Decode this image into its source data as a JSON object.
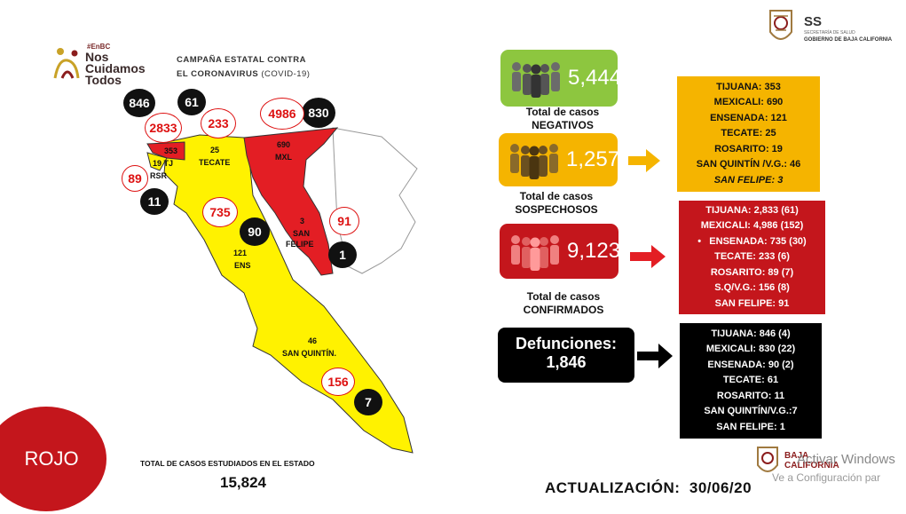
{
  "header": {
    "hashtag": "#EnBC",
    "logo_line1": "Nos",
    "logo_line2": "Cuidamos",
    "logo_line3": "Todos",
    "campaign_line1": "CAMPAÑA ESTATAL CONTRA",
    "campaign_line2a": "EL CORONAVIRUS",
    "campaign_line2b": "(COVID-19)",
    "ss_label": "SS",
    "ss_sub": "SECRETARÍA DE SALUD",
    "gov_label": "GOBIERNO DE BAJA CALIFORNIA"
  },
  "map": {
    "circles": {
      "tj_deaths": "846",
      "tecate_deaths": "61",
      "mxl_deaths": "830",
      "tj_confirmed": "2833",
      "tecate_confirmed": "233",
      "mxl_confirmed": "4986",
      "rsr_confirmed": "89",
      "rsr_deaths": "11",
      "ens_confirmed": "735",
      "ens_deaths": "90",
      "sf_confirmed": "91",
      "sf_deaths": "1",
      "sq_confirmed": "156",
      "sq_deaths": "7"
    },
    "labels": {
      "tj_suspect": "353",
      "tj_name": "19 TJ",
      "rsr_name": "RSR",
      "tecate_suspect": "25",
      "tecate_name": "TECATE",
      "mxl_suspect": "690",
      "mxl_name": "MXL",
      "sf_suspect": "3",
      "sf_name1": "SAN",
      "sf_name2": "FELIPE",
      "ens_suspect": "121",
      "ens_name": "ENS",
      "sq_suspect": "46",
      "sq_name": "SAN QUINTÍN."
    }
  },
  "status": {
    "label": "ROJO"
  },
  "totals": {
    "caption": "TOTAL DE CASOS ESTUDIADOS EN EL ESTADO",
    "value": "15,824"
  },
  "negatives": {
    "value": "5,444",
    "caption1": "Total de casos",
    "caption2": "NEGATIVOS",
    "color": "#8dc63f"
  },
  "suspects": {
    "value": "1,257",
    "caption1": "Total de casos",
    "caption2": "SOSPECHOSOS",
    "color": "#f5b400",
    "list": [
      "TIJUANA: 353",
      "MEXICALI: 690",
      "ENSENADA: 121",
      "TECATE: 25",
      "ROSARITO: 19",
      "SAN QUINTÍN /V.G.: 46",
      "SAN FELIPE: 3"
    ]
  },
  "confirmed": {
    "value": "9,123",
    "caption1": "Total de casos",
    "caption2": "CONFIRMADOS",
    "color": "#c4161c",
    "list": [
      "TIJUANA: 2,833 (61)",
      "MEXICALI: 4,986 (152)",
      "ENSENADA: 735 (30)",
      "TECATE: 233 (6)",
      "ROSARITO: 89 (7)",
      "S.Q/V.G.: 156 (8)",
      "SAN FELIPE: 91"
    ]
  },
  "deaths": {
    "title": "Defunciones:",
    "value": "1,846",
    "list": [
      "TIJUANA: 846 (4)",
      "MEXICALI: 830 (22)",
      "ENSENADA: 90 (2)",
      "TECATE: 61",
      "ROSARITO: 11",
      "SAN QUINTÍN/V.G.:7",
      "SAN FELIPE: 1"
    ]
  },
  "footer": {
    "update_label": "ACTUALIZACIÓN:",
    "update_date": "30/06/20",
    "bc_logo1": "BAJA",
    "bc_logo2": "CALIFORNIA",
    "watermark1": "Activar Windows",
    "watermark2": "Ve a Configuración par"
  },
  "colors": {
    "map_yellow": "#fff200",
    "map_red": "#e31e24",
    "deaths_box": "#000000"
  }
}
